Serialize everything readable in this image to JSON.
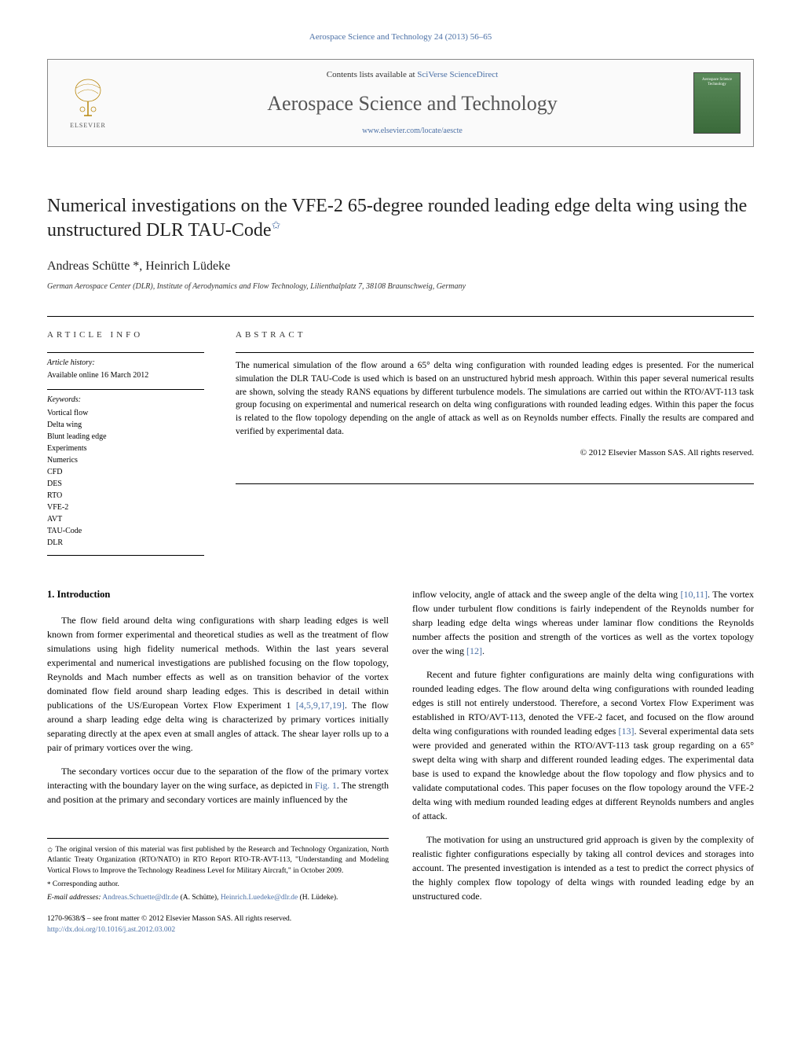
{
  "header": {
    "citation": "Aerospace Science and Technology 24 (2013) 56–65",
    "contents_prefix": "Contents lists available at ",
    "contents_link": "SciVerse ScienceDirect",
    "journal_title": "Aerospace Science and Technology",
    "journal_url": "www.elsevier.com/locate/aescte",
    "elsevier_label": "ELSEVIER",
    "cover_text": "Aerospace Science Technology"
  },
  "article": {
    "title": "Numerical investigations on the VFE-2 65-degree rounded leading edge delta wing using the unstructured DLR TAU-Code",
    "title_note_marker": "✩",
    "authors": "Andreas Schütte *, Heinrich Lüdeke",
    "affiliation": "German Aerospace Center (DLR), Institute of Aerodynamics and Flow Technology, Lilienthalplatz 7, 38108 Braunschweig, Germany"
  },
  "info": {
    "heading": "ARTICLE INFO",
    "history_label": "Article history:",
    "history_text": "Available online 16 March 2012",
    "keywords_label": "Keywords:",
    "keywords": [
      "Vortical flow",
      "Delta wing",
      "Blunt leading edge",
      "Experiments",
      "Numerics",
      "CFD",
      "DES",
      "RTO",
      "VFE-2",
      "AVT",
      "TAU-Code",
      "DLR"
    ]
  },
  "abstract": {
    "heading": "ABSTRACT",
    "text": "The numerical simulation of the flow around a 65° delta wing configuration with rounded leading edges is presented. For the numerical simulation the DLR TAU-Code is used which is based on an unstructured hybrid mesh approach. Within this paper several numerical results are shown, solving the steady RANS equations by different turbulence models. The simulations are carried out within the RTO/AVT-113 task group focusing on experimental and numerical research on delta wing configurations with rounded leading edges. Within this paper the focus is related to the flow topology depending on the angle of attack as well as on Reynolds number effects. Finally the results are compared and verified by experimental data.",
    "copyright": "© 2012 Elsevier Masson SAS. All rights reserved."
  },
  "body": {
    "section1_heading": "1. Introduction",
    "col1": {
      "p1": "The flow field around delta wing configurations with sharp leading edges is well known from former experimental and theoretical studies as well as the treatment of flow simulations using high fidelity numerical methods. Within the last years several experimental and numerical investigations are published focusing on the flow topology, Reynolds and Mach number effects as well as on transition behavior of the vortex dominated flow field around sharp leading edges. This is described in detail within publications of the US/European Vortex Flow Experiment 1 ",
      "p1_ref": "[4,5,9,17,19]",
      "p1_tail": ". The flow around a sharp leading edge delta wing is characterized by primary vortices initially separating directly at the apex even at small angles of attack. The shear layer rolls up to a pair of primary vortices over the wing.",
      "p2": "The secondary vortices occur due to the separation of the flow of the primary vortex interacting with the boundary layer on the wing surface, as depicted in ",
      "p2_fig": "Fig. 1",
      "p2_tail": ". The strength and position at the primary and secondary vortices are mainly influenced by the"
    },
    "col2": {
      "p1": "inflow velocity, angle of attack and the sweep angle of the delta wing ",
      "p1_ref": "[10,11]",
      "p1_mid": ". The vortex flow under turbulent flow conditions is fairly independent of the Reynolds number for sharp leading edge delta wings whereas under laminar flow conditions the Reynolds number affects the position and strength of the vortices as well as the vortex topology over the wing ",
      "p1_ref2": "[12]",
      "p1_tail": ".",
      "p2": "Recent and future fighter configurations are mainly delta wing configurations with rounded leading edges. The flow around delta wing configurations with rounded leading edges is still not entirely understood. Therefore, a second Vortex Flow Experiment was established in RTO/AVT-113, denoted the VFE-2 facet, and focused on the flow around delta wing configurations with rounded leading edges ",
      "p2_ref": "[13]",
      "p2_tail": ". Several experimental data sets were provided and generated within the RTO/AVT-113 task group regarding on a 65° swept delta wing with sharp and different rounded leading edges. The experimental data base is used to expand the knowledge about the flow topology and flow physics and to validate computational codes. This paper focuses on the flow topology around the VFE-2 delta wing with medium rounded leading edges at different Reynolds numbers and angles of attack.",
      "p3": "The motivation for using an unstructured grid approach is given by the complexity of realistic fighter configurations especially by taking all control devices and storages into account. The presented investigation is intended as a test to predict the correct physics of the highly complex flow topology of delta wings with rounded leading edge by an unstructured code."
    }
  },
  "footnotes": {
    "note1_marker": "✩",
    "note1": "The original version of this material was first published by the Research and Technology Organization, North Atlantic Treaty Organization (RTO/NATO) in RTO Report RTO-TR-AVT-113, \"Understanding and Modeling Vortical Flows to Improve the Technology Readiness Level for Military Aircraft,\" in October 2009.",
    "corr_marker": "*",
    "corr_text": "Corresponding author.",
    "email_label": "E-mail addresses:",
    "email1": "Andreas.Schuette@dlr.de",
    "email1_name": "(A. Schütte),",
    "email2": "Heinrich.Luedeke@dlr.de",
    "email2_name": "(H. Lüdeke)."
  },
  "footer": {
    "front_matter": "1270-9638/$ – see front matter © 2012 Elsevier Masson SAS. All rights reserved.",
    "doi": "http://dx.doi.org/10.1016/j.ast.2012.03.002"
  },
  "colors": {
    "link": "#4a6fa5",
    "text": "#000000",
    "heading_gray": "#555555"
  }
}
